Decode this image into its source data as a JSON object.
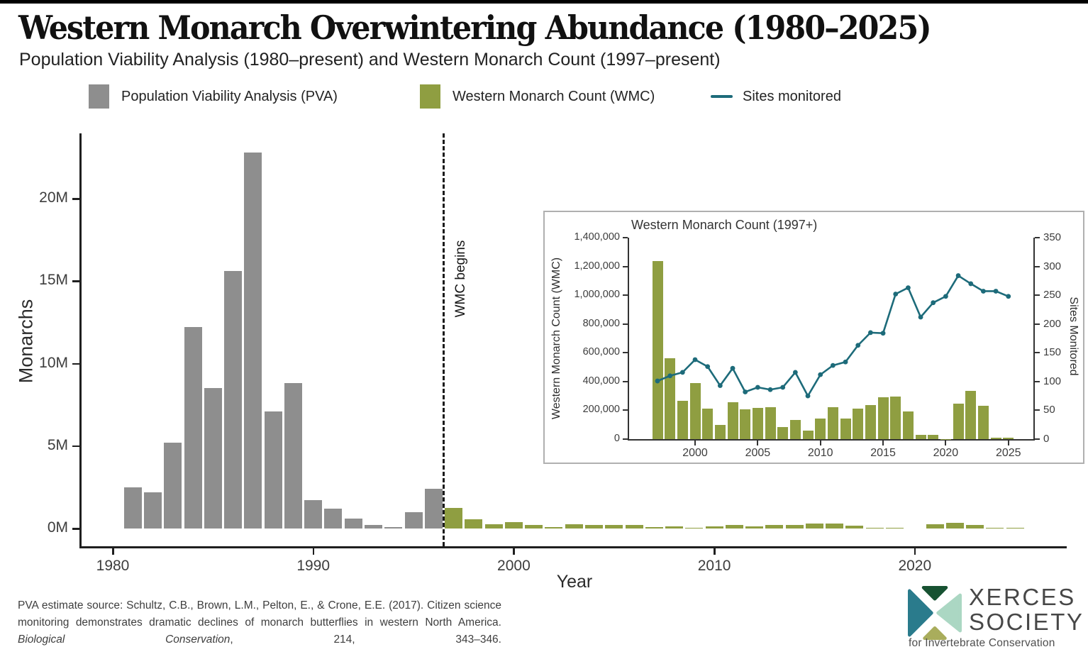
{
  "page": {
    "title": "Western Monarch Overwintering Abundance (1980–2025)",
    "subtitle": "Population Viability Analysis (1980–present) and Western Monarch Count (1997–present)"
  },
  "colors": {
    "pva_gray": "#8e8e8e",
    "wmc_olive": "#8f9e41",
    "sites_teal": "#1d6b7a",
    "spine": "#1f1f1f",
    "annotation_line": "#1b1b1b"
  },
  "legend": {
    "items": [
      {
        "label": "Population Viability Analysis (PVA)",
        "swatch": "square",
        "color": "#8e8e8e"
      },
      {
        "label": "Western Monarch Count (WMC)",
        "swatch": "square",
        "color": "#8f9e41"
      },
      {
        "label": "Sites monitored",
        "swatch": "line",
        "color": "#1d6b7a"
      }
    ]
  },
  "chart_data": [
    {
      "type": "bar",
      "title": "Western Monarch Overwintering Abundance (1980–2025)",
      "xlabel": "Year",
      "ylabel": "Monarchs",
      "ylim": [
        0,
        23
      ],
      "units": "millions of monarchs",
      "ytick_values": [
        0,
        5,
        10,
        15,
        20
      ],
      "ytick_labels": [
        "0M",
        "5M",
        "10M",
        "15M",
        "20M"
      ],
      "xtick_values": [
        1980,
        1990,
        2000,
        2010,
        2020
      ],
      "grid": false,
      "annotation": {
        "x": 1996.5,
        "label": "WMC begins",
        "style": "dashed-vertical"
      },
      "series": [
        {
          "name": "Population Viability Analysis (PVA)",
          "color": "#8e8e8e",
          "years": [
            1981,
            1982,
            1983,
            1984,
            1985,
            1986,
            1987,
            1988,
            1989,
            1990,
            1991,
            1992,
            1993,
            1994,
            1995,
            1996
          ],
          "values_millions": [
            2.5,
            2.2,
            5.2,
            12.2,
            8.5,
            15.6,
            22.8,
            7.1,
            8.8,
            1.7,
            1.2,
            0.6,
            0.2,
            0.1,
            1.0,
            2.4
          ]
        },
        {
          "name": "Western Monarch Count (WMC)",
          "color": "#8f9e41",
          "years": [
            1997,
            1998,
            1999,
            2000,
            2001,
            2002,
            2003,
            2004,
            2005,
            2006,
            2007,
            2008,
            2009,
            2010,
            2011,
            2012,
            2013,
            2014,
            2015,
            2016,
            2017,
            2018,
            2019,
            2020,
            2021,
            2022,
            2023,
            2024,
            2025
          ],
          "values_millions": [
            1.24,
            0.56,
            0.27,
            0.39,
            0.21,
            0.1,
            0.25,
            0.21,
            0.22,
            0.22,
            0.09,
            0.13,
            0.06,
            0.14,
            0.22,
            0.15,
            0.21,
            0.23,
            0.29,
            0.3,
            0.19,
            0.03,
            0.03,
            0.0,
            0.25,
            0.34,
            0.23,
            0.01,
            0.01
          ]
        }
      ]
    },
    {
      "type": "bar+line",
      "title": "Western Monarch Count (1997+)",
      "ylabel_left": "Western Monarch Count (WMC)",
      "ylabel_right": "Sites Monitored",
      "ylim_left": [
        0,
        1400000
      ],
      "ylim_right": [
        0,
        350
      ],
      "ytick_left_values": [
        0,
        200000,
        400000,
        600000,
        800000,
        1000000,
        1200000,
        1400000
      ],
      "ytick_left_labels": [
        "0",
        "200,000",
        "400,000",
        "600,000",
        "800,000",
        "1,000,000",
        "1,200,000",
        "1,400,000"
      ],
      "ytick_right_values": [
        0,
        50,
        100,
        150,
        200,
        250,
        300,
        350
      ],
      "xtick_values": [
        2000,
        2005,
        2010,
        2015,
        2020,
        2025
      ],
      "years": [
        1997,
        1998,
        1999,
        2000,
        2001,
        2002,
        2003,
        2004,
        2005,
        2006,
        2007,
        2008,
        2009,
        2010,
        2011,
        2012,
        2013,
        2014,
        2015,
        2016,
        2017,
        2018,
        2019,
        2020,
        2021,
        2022,
        2023,
        2024,
        2025
      ],
      "series": [
        {
          "name": "Western Monarch Count (WMC)",
          "type": "bar",
          "color": "#8f9e41",
          "axis": "left",
          "values": [
            1235000,
            564000,
            268000,
            390000,
            210000,
            99000,
            254000,
            205000,
            218000,
            221000,
            86000,
            132000,
            58000,
            143000,
            222000,
            145000,
            211000,
            235000,
            293000,
            298000,
            193000,
            28000,
            29000,
            2000,
            247000,
            335000,
            233000,
            9000,
            10000
          ]
        },
        {
          "name": "Sites monitored",
          "type": "line",
          "color": "#1d6b7a",
          "axis": "right",
          "values": [
            101,
            110,
            116,
            138,
            126,
            93,
            123,
            82,
            90,
            86,
            90,
            116,
            75,
            112,
            128,
            134,
            163,
            185,
            184,
            252,
            263,
            212,
            237,
            248,
            284,
            270,
            257,
            257,
            248
          ]
        }
      ]
    }
  ],
  "footer": {
    "citation_prefix": "PVA estimate source: Schultz, C.B., Brown, L.M., Pelton, E., & Crone, E.E. (2017). Citizen science monitoring demonstrates dramatic declines of monarch butterflies in western North America. ",
    "citation_italic": "Biological Conservation",
    "citation_suffix": ", 214, 343–346."
  },
  "logo": {
    "line1": "XERCES",
    "line2": "SOCIETY",
    "tagline": "for Invertebrate Conservation",
    "mark_colors": {
      "left": "#2a7b8c",
      "top": "#175232",
      "right": "#abd7c3",
      "bottom": "#a9ad5c"
    }
  }
}
